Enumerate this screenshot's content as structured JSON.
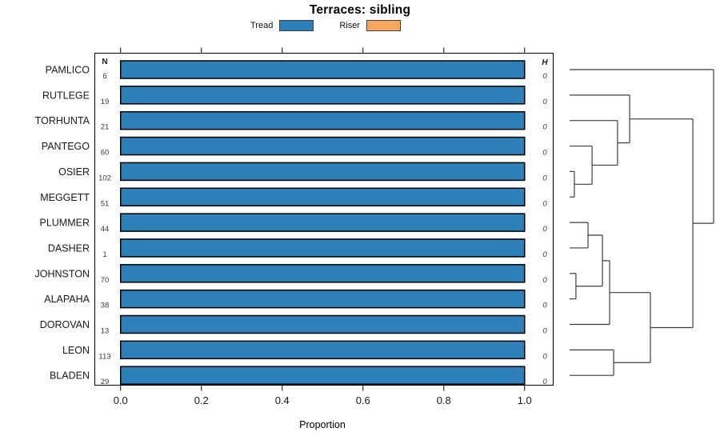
{
  "title": "Terraces: sibling",
  "legend": [
    {
      "label": "Tread",
      "color": "#2E81B8"
    },
    {
      "label": "Riser",
      "color": "#FAA75F"
    }
  ],
  "columns": {
    "n_header": "N",
    "h_header": "H"
  },
  "chart_data": {
    "type": "bar",
    "orientation": "horizontal-stacked",
    "title": "Terraces: sibling",
    "xlabel": "Proportion",
    "xlim": [
      0,
      1
    ],
    "x_ticks": [
      0,
      0.2,
      0.4,
      0.6,
      0.8,
      1.0
    ],
    "x_tick_labels": [
      "0.0",
      "0.2",
      "0.4",
      "0.6",
      "0.8",
      "1.0"
    ],
    "grid": false,
    "legend_position": "top",
    "categories": [
      "PAMLICO",
      "RUTLEGE",
      "TORHUNTA",
      "PANTEGO",
      "OSIER",
      "MEGGETT",
      "PLUMMER",
      "DASHER",
      "JOHNSTON",
      "ALAPAHA",
      "DOROVAN",
      "LEON",
      "BLADEN"
    ],
    "n_values": [
      6,
      19,
      21,
      60,
      102,
      51,
      44,
      1,
      70,
      38,
      13,
      113,
      29
    ],
    "h_values": [
      0,
      0,
      0,
      0,
      0,
      0,
      0,
      0,
      0,
      0,
      0,
      0,
      0
    ],
    "series": [
      {
        "name": "Tread",
        "color": "#2E81B8",
        "values": [
          1,
          1,
          1,
          1,
          1,
          1,
          1,
          1,
          1,
          1,
          1,
          1,
          1
        ]
      },
      {
        "name": "Riser",
        "color": "#FAA75F",
        "values": [
          0,
          0,
          0,
          0,
          0,
          0,
          0,
          0,
          0,
          0,
          0,
          0,
          0
        ]
      }
    ],
    "dendrogram": {
      "leaf_order": [
        "PAMLICO",
        "RUTLEGE",
        "TORHUNTA",
        "PANTEGO",
        "OSIER",
        "MEGGETT",
        "PLUMMER",
        "DASHER",
        "JOHNSTON",
        "ALAPAHA",
        "DOROVAN",
        "LEON",
        "BLADEN"
      ],
      "merges": [
        {
          "id": "M0",
          "a": "L4",
          "b": "L5",
          "h": 0.033
        },
        {
          "id": "M1",
          "a": "L3",
          "b": "M0",
          "h": 0.156
        },
        {
          "id": "M2",
          "a": "L2",
          "b": "M1",
          "h": 0.333
        },
        {
          "id": "M3",
          "a": "L1",
          "b": "M2",
          "h": 0.417
        },
        {
          "id": "M4",
          "a": "L6",
          "b": "L7",
          "h": 0.128
        },
        {
          "id": "M5",
          "a": "L8",
          "b": "L9",
          "h": 0.044
        },
        {
          "id": "M6",
          "a": "M4",
          "b": "M5",
          "h": 0.228
        },
        {
          "id": "M7",
          "a": "M6",
          "b": "L10",
          "h": 0.278
        },
        {
          "id": "M8",
          "a": "L11",
          "b": "L12",
          "h": 0.306
        },
        {
          "id": "M9",
          "a": "M7",
          "b": "M8",
          "h": 0.561
        },
        {
          "id": "M10",
          "a": "M3",
          "b": "M9",
          "h": 0.856
        },
        {
          "id": "M11",
          "a": "L0",
          "b": "M10",
          "h": 1.0
        }
      ]
    }
  }
}
